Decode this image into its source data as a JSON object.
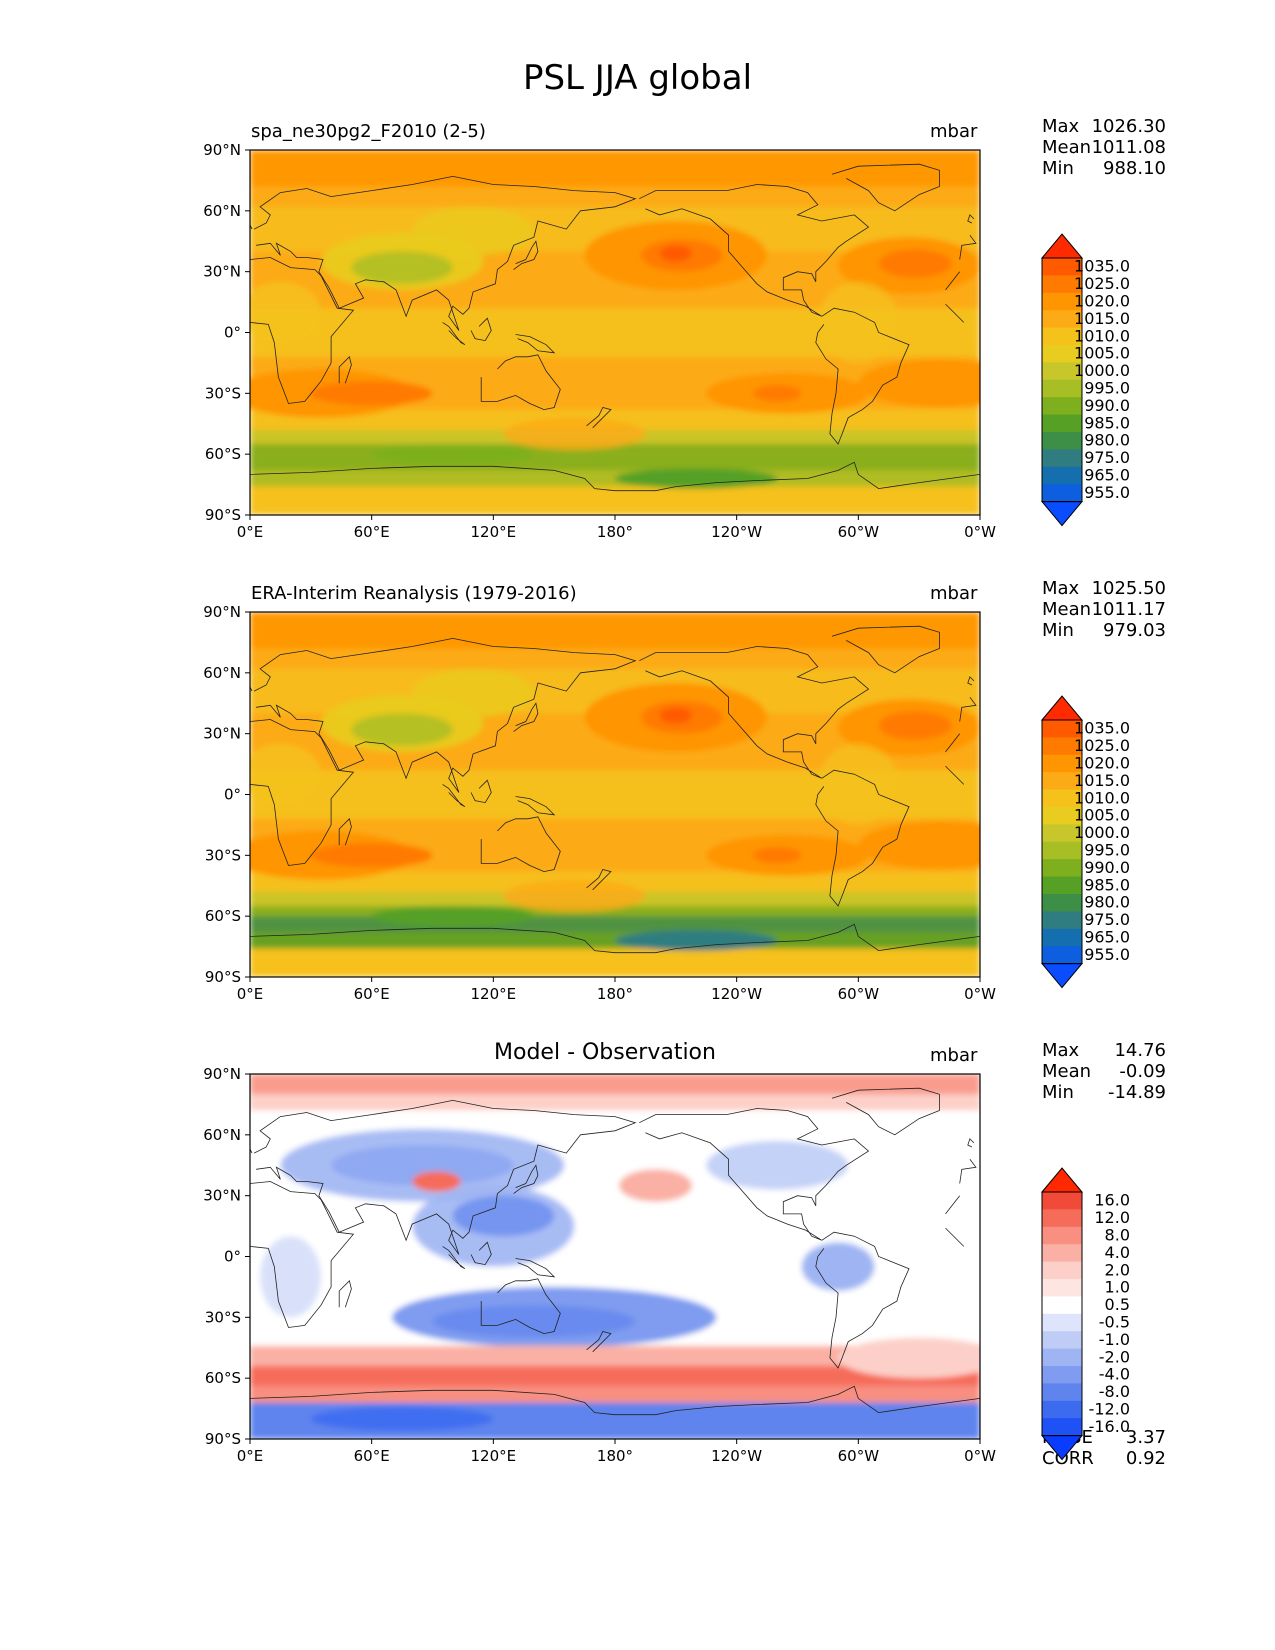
{
  "title": "PSL JJA global",
  "x_ticks": [
    "0°E",
    "60°E",
    "120°E",
    "180°",
    "120°W",
    "60°W",
    "0°W"
  ],
  "y_ticks": [
    "90°N",
    "60°N",
    "30°N",
    "0°",
    "30°S",
    "60°S",
    "90°S"
  ],
  "panels": [
    {
      "title": "spa_ne30pg2_F2010 (2-5)",
      "units": "mbar",
      "stats": [
        {
          "label": "Max",
          "value": "1026.30"
        },
        {
          "label": "Mean",
          "value": "1011.08"
        },
        {
          "label": "Min",
          "value": "988.10"
        }
      ],
      "colorbar_levels": [
        "1035.0",
        "1025.0",
        "1020.0",
        "1015.0",
        "1010.0",
        "1005.0",
        "1000.0",
        "995.0",
        "990.0",
        "985.0",
        "980.0",
        "975.0",
        "965.0",
        "955.0"
      ],
      "colorbar_colors": [
        "#ff2a00",
        "#ff5a00",
        "#ff7a00",
        "#ff9500",
        "#fcaa16",
        "#f5c21c",
        "#e8cc20",
        "#c7c62a",
        "#a8be25",
        "#7daf1e",
        "#55a025",
        "#3d8f48",
        "#2f7d80",
        "#156fae",
        "#0e5fe0",
        "#0a4dff"
      ],
      "colors": {
        "ocean_base": "#fbb018",
        "land_line": "#222222"
      }
    },
    {
      "title": "ERA-Interim Reanalysis (1979-2016)",
      "units": "mbar",
      "stats": [
        {
          "label": "Max",
          "value": "1025.50"
        },
        {
          "label": "Mean",
          "value": "1011.17"
        },
        {
          "label": "Min",
          "value": "979.03"
        }
      ],
      "colorbar_levels": [
        "1035.0",
        "1025.0",
        "1020.0",
        "1015.0",
        "1010.0",
        "1005.0",
        "1000.0",
        "995.0",
        "990.0",
        "985.0",
        "980.0",
        "975.0",
        "965.0",
        "955.0"
      ],
      "colorbar_colors": [
        "#ff2a00",
        "#ff5a00",
        "#ff7a00",
        "#ff9500",
        "#fcaa16",
        "#f5c21c",
        "#e8cc20",
        "#c7c62a",
        "#a8be25",
        "#7daf1e",
        "#55a025",
        "#3d8f48",
        "#2f7d80",
        "#156fae",
        "#0e5fe0",
        "#0a4dff"
      ],
      "colors": {
        "ocean_base": "#fbb018",
        "land_line": "#222222"
      }
    },
    {
      "title": "Model - Observation",
      "units": "mbar",
      "stats": [
        {
          "label": "Max",
          "value": "14.76"
        },
        {
          "label": "Mean",
          "value": "-0.09"
        },
        {
          "label": "Min",
          "value": "-14.89"
        }
      ],
      "extra_stats": [
        {
          "label": "RMSE",
          "value": "3.37"
        },
        {
          "label": "CORR",
          "value": "0.92"
        }
      ],
      "colorbar_levels": [
        "16.0",
        "12.0",
        "8.0",
        "4.0",
        "2.0",
        "1.0",
        "0.5",
        "-0.5",
        "-1.0",
        "-2.0",
        "-4.0",
        "-8.0",
        "-12.0",
        "-16.0"
      ],
      "colorbar_colors": [
        "#ff2800",
        "#f24a38",
        "#f66c5a",
        "#f88f80",
        "#fab0a4",
        "#fcd0c8",
        "#fde6e2",
        "#ffffff",
        "#dde4fb",
        "#bfcdf6",
        "#9fb5f3",
        "#7f9cf0",
        "#5f84ee",
        "#3d6bef",
        "#1f52f6",
        "#0a3cff"
      ],
      "colors": {
        "ocean_base": "#ffffff",
        "land_line": "#222222"
      }
    }
  ]
}
